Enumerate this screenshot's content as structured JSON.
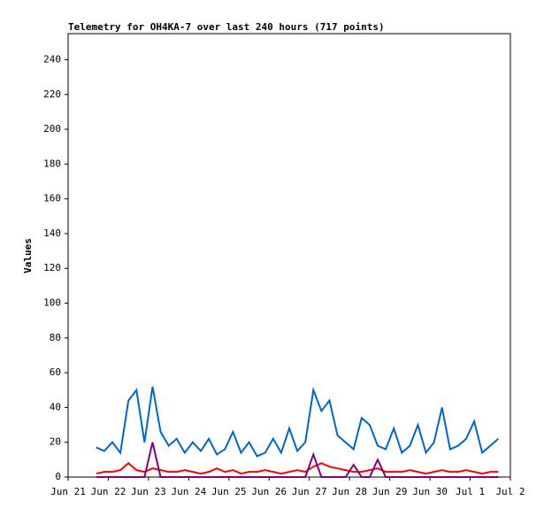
{
  "chart_data": {
    "type": "line",
    "title": "Telemetry for OH4KA-7 over last 240 hours (717 points)",
    "ylabel": "Values",
    "x": [
      0.7,
      0.9,
      1.1,
      1.3,
      1.5,
      1.7,
      1.9,
      2.1,
      2.3,
      2.5,
      2.7,
      2.9,
      3.1,
      3.3,
      3.5,
      3.7,
      3.9,
      4.1,
      4.3,
      4.5,
      4.7,
      4.9,
      5.1,
      5.3,
      5.5,
      5.7,
      5.9,
      6.1,
      6.3,
      6.5,
      6.7,
      6.9,
      7.1,
      7.3,
      7.5,
      7.7,
      7.9,
      8.1,
      8.3,
      8.5,
      8.7,
      8.9,
      9.1,
      9.3,
      9.5,
      9.7,
      9.9,
      10.1,
      10.3,
      10.5,
      10.7
    ],
    "series": [
      {
        "color": "#0066cc",
        "values": [
          17,
          15,
          20,
          14,
          44,
          50,
          20,
          52,
          26,
          18,
          22,
          14,
          20,
          15,
          22,
          13,
          16,
          26,
          14,
          20,
          12,
          14,
          22,
          14,
          28,
          15,
          20,
          50,
          38,
          44,
          24,
          20,
          16,
          34,
          30,
          18,
          16,
          28,
          14,
          18,
          30,
          14,
          20,
          40,
          16,
          18,
          22,
          32,
          14,
          18,
          22
        ]
      },
      {
        "color": "#ff0000",
        "values": [
          2,
          3,
          3,
          4,
          8,
          4,
          3,
          5,
          4,
          3,
          3,
          4,
          3,
          2,
          3,
          5,
          3,
          4,
          2,
          3,
          3,
          4,
          3,
          2,
          3,
          4,
          3,
          6,
          8,
          6,
          5,
          4,
          3,
          3,
          4,
          5,
          3,
          3,
          3,
          4,
          3,
          2,
          3,
          4,
          3,
          3,
          4,
          3,
          2,
          3,
          3
        ]
      },
      {
        "color": "#800080",
        "values": [
          0,
          0,
          0,
          0,
          0,
          0,
          0,
          20,
          0,
          0,
          0,
          0,
          0,
          0,
          0,
          0,
          0,
          0,
          0,
          0,
          0,
          0,
          0,
          0,
          0,
          0,
          0,
          13,
          0,
          0,
          0,
          0,
          7,
          0,
          0,
          10,
          0,
          0,
          0,
          0,
          0,
          0,
          0,
          0,
          0,
          0,
          0,
          0,
          0,
          0,
          0
        ]
      }
    ],
    "xlim": [
      0,
      11
    ],
    "xticks": [
      {
        "value": 0,
        "label": "Jun 21"
      },
      {
        "value": 1,
        "label": "Jun 22"
      },
      {
        "value": 2,
        "label": "Jun 23"
      },
      {
        "value": 3,
        "label": "Jun 24"
      },
      {
        "value": 4,
        "label": "Jun 25"
      },
      {
        "value": 5,
        "label": "Jun 26"
      },
      {
        "value": 6,
        "label": "Jun 27"
      },
      {
        "value": 7,
        "label": "Jun 28"
      },
      {
        "value": 8,
        "label": "Jun 29"
      },
      {
        "value": 9,
        "label": "Jun 30"
      },
      {
        "value": 10,
        "label": "Jul 1"
      },
      {
        "value": 11,
        "label": "Jul 2"
      }
    ],
    "ylim": [
      0,
      255
    ],
    "yticks": [
      0,
      20,
      40,
      60,
      80,
      100,
      120,
      140,
      160,
      180,
      200,
      220,
      240
    ]
  }
}
